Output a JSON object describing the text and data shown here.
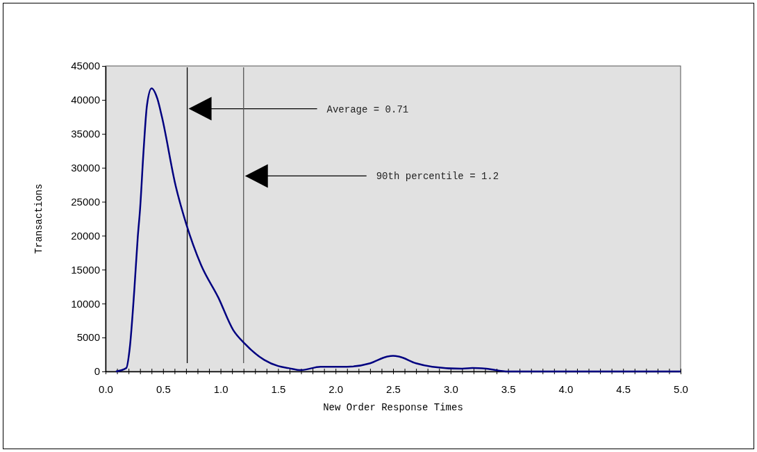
{
  "chart_data": {
    "type": "line",
    "xlabel": "New Order Response Times",
    "ylabel": "Transactions",
    "x": [
      0.09,
      0.18,
      0.21,
      0.25,
      0.28,
      0.3,
      0.33,
      0.36,
      0.4,
      0.45,
      0.49,
      0.61,
      0.7,
      0.83,
      0.98,
      1.11,
      1.21,
      1.38,
      1.5,
      1.59,
      1.7,
      1.87,
      2.0,
      2.1,
      2.3,
      2.45,
      2.5,
      2.55,
      2.7,
      2.84,
      3.1,
      3.19,
      3.31,
      3.5,
      5.0
    ],
    "series": [
      {
        "color": "#000080",
        "values": [
          0,
          500,
          3400,
          12000,
          19800,
          23900,
          32400,
          39200,
          41700,
          40200,
          37500,
          27300,
          21800,
          15700,
          10900,
          6100,
          4100,
          1700,
          800,
          500,
          200,
          700,
          700,
          700,
          1200,
          2200,
          2300,
          2200,
          1200,
          700,
          400,
          500,
          400,
          0,
          0
        ]
      }
    ],
    "xlim": [
      0,
      5
    ],
    "xticks": [
      {
        "value": 0,
        "label": "0.0"
      },
      {
        "value": 0.1,
        "label": null
      },
      {
        "value": 0.2,
        "label": null
      },
      {
        "value": 0.3,
        "label": null
      },
      {
        "value": 0.4,
        "label": null
      },
      {
        "value": 0.5,
        "label": "0.5"
      },
      {
        "value": 0.6,
        "label": null
      },
      {
        "value": 0.7,
        "label": null
      },
      {
        "value": 0.8,
        "label": null
      },
      {
        "value": 0.9,
        "label": null
      },
      {
        "value": 1,
        "label": "1.0"
      },
      {
        "value": 1.1,
        "label": null
      },
      {
        "value": 1.2,
        "label": null
      },
      {
        "value": 1.3,
        "label": null
      },
      {
        "value": 1.4,
        "label": null
      },
      {
        "value": 1.5,
        "label": "1.5"
      },
      {
        "value": 1.6,
        "label": null
      },
      {
        "value": 1.7,
        "label": null
      },
      {
        "value": 1.8,
        "label": null
      },
      {
        "value": 1.9,
        "label": null
      },
      {
        "value": 2,
        "label": "2.0"
      },
      {
        "value": 2.1,
        "label": null
      },
      {
        "value": 2.2,
        "label": null
      },
      {
        "value": 2.3,
        "label": null
      },
      {
        "value": 2.4,
        "label": null
      },
      {
        "value": 2.5,
        "label": "2.5"
      },
      {
        "value": 2.6,
        "label": null
      },
      {
        "value": 2.7,
        "label": null
      },
      {
        "value": 2.8,
        "label": null
      },
      {
        "value": 2.9,
        "label": null
      },
      {
        "value": 3,
        "label": "3.0"
      },
      {
        "value": 3.1,
        "label": null
      },
      {
        "value": 3.2,
        "label": null
      },
      {
        "value": 3.3,
        "label": null
      },
      {
        "value": 3.4,
        "label": null
      },
      {
        "value": 3.5,
        "label": "3.5"
      },
      {
        "value": 3.6,
        "label": null
      },
      {
        "value": 3.7,
        "label": null
      },
      {
        "value": 3.8,
        "label": null
      },
      {
        "value": 3.9,
        "label": null
      },
      {
        "value": 4,
        "label": "4.0"
      },
      {
        "value": 4.1,
        "label": null
      },
      {
        "value": 4.2,
        "label": null
      },
      {
        "value": 4.3,
        "label": null
      },
      {
        "value": 4.4,
        "label": null
      },
      {
        "value": 4.5,
        "label": "4.5"
      },
      {
        "value": 4.6,
        "label": null
      },
      {
        "value": 4.7,
        "label": null
      },
      {
        "value": 4.8,
        "label": null
      },
      {
        "value": 4.9,
        "label": null
      },
      {
        "value": 5,
        "label": "5.0"
      }
    ],
    "ylim": [
      0,
      45000
    ],
    "yticks": [
      0,
      5000,
      10000,
      15000,
      20000,
      25000,
      30000,
      35000,
      40000,
      45000
    ],
    "ref_lines": [
      {
        "axis": "x",
        "value": 0.71,
        "color": "#000000"
      },
      {
        "axis": "x",
        "value": 1.2,
        "color": "#555555"
      }
    ],
    "annotations": [
      "Average = 0.71",
      "90th percentile = 1.2"
    ],
    "grid": false,
    "marker": "none",
    "line_style": "solid"
  }
}
